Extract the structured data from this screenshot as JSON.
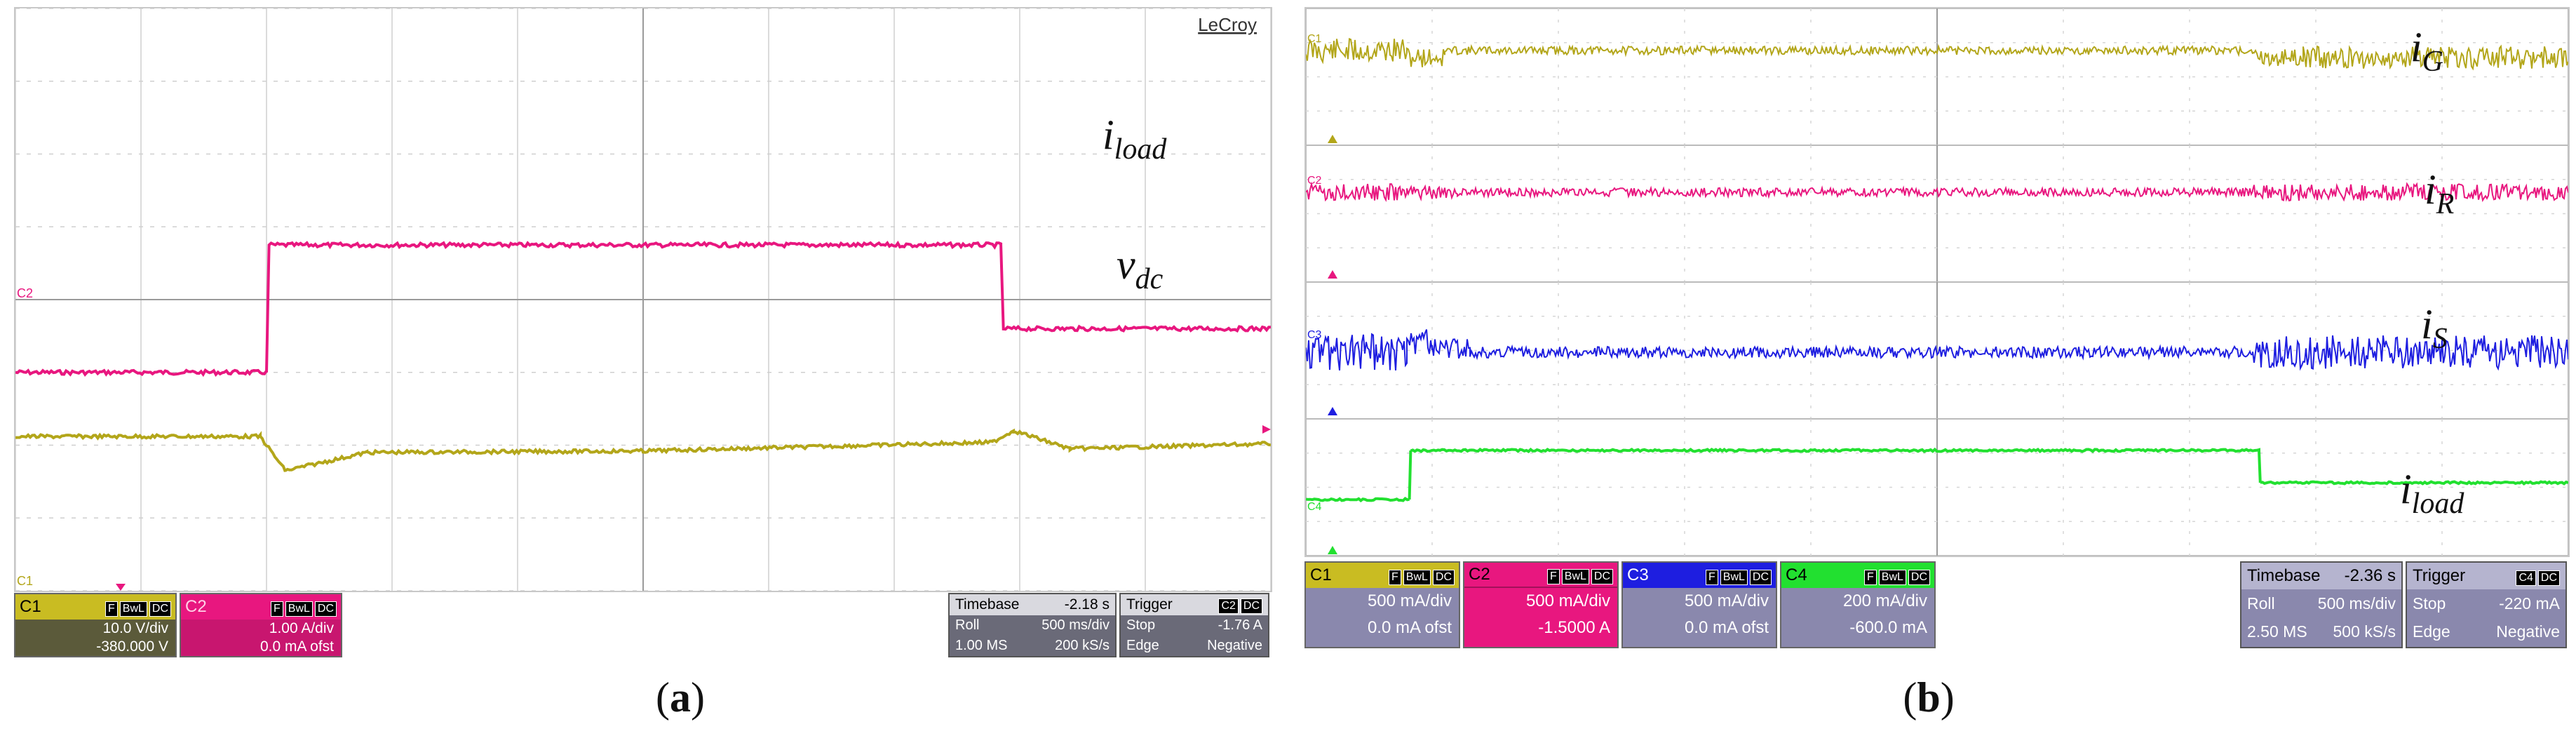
{
  "figure": {
    "panel_a": {
      "caption": "a",
      "logo": "LeCroy",
      "channel_markers": [
        "C2",
        "C1"
      ],
      "chart_data": {
        "type": "line",
        "xlabel": "",
        "ylabel": "",
        "time_unit": "s",
        "x_range_s": [
          -2.5,
          2.5
        ],
        "grid": true,
        "series": [
          {
            "name": "i_load",
            "label_main": "i",
            "label_sub": "load",
            "color": "#e8177f",
            "points_div": [
              [
                -5.0,
                3.0
              ],
              [
                -3.0,
                3.0
              ],
              [
                -2.98,
                4.75
              ],
              [
                2.85,
                4.75
              ],
              [
                2.87,
                3.6
              ],
              [
                5.0,
                3.6
              ]
            ]
          },
          {
            "name": "v_dc",
            "label_main": "v",
            "label_sub": "dc",
            "color": "#b3a61a",
            "points_div": [
              [
                -5.0,
                2.12
              ],
              [
                -3.05,
                2.12
              ],
              [
                -2.85,
                1.65
              ],
              [
                -2.2,
                1.9
              ],
              [
                0.0,
                1.92
              ],
              [
                2.78,
                2.04
              ],
              [
                2.95,
                2.2
              ],
              [
                3.4,
                1.95
              ],
              [
                5.0,
                2.02
              ]
            ]
          }
        ]
      },
      "channels": [
        {
          "id": "C1",
          "tags": [
            "F",
            "BwL",
            "DC"
          ],
          "scale": "10.0 V/div",
          "offset": "-380.000 V",
          "color": "#b3a61a"
        },
        {
          "id": "C2",
          "tags": [
            "F",
            "BwL",
            "DC"
          ],
          "scale": "1.00 A/div",
          "offset": "0.0 mA ofst",
          "color": "#e8177f"
        }
      ],
      "timebase": {
        "label": "Timebase",
        "value": "-2.18 s",
        "mode": "Roll",
        "rate": "500 ms/div",
        "samples": "1.00 MS",
        "sample_rate": "200 kS/s"
      },
      "trigger": {
        "label": "Trigger",
        "channel": "C2",
        "coupling": "DC",
        "mode": "Stop",
        "level": "-1.76 A",
        "type": "Edge",
        "slope": "Negative"
      }
    },
    "panel_b": {
      "caption": "b",
      "chart_data": {
        "type": "line",
        "xlabel": "",
        "ylabel": "",
        "time_unit": "s",
        "x_range_s": [
          -2.5,
          2.5
        ],
        "grid": true,
        "series": [
          {
            "name": "i_G",
            "label_main": "i",
            "label_sub": "G",
            "color": "#b3a61a",
            "channel": "C1"
          },
          {
            "name": "i_R",
            "label_main": "i",
            "label_sub": "R",
            "color": "#e8177f",
            "channel": "C2"
          },
          {
            "name": "i_S",
            "label_main": "i",
            "label_sub": "S",
            "color": "#1e1ee0",
            "channel": "C3"
          },
          {
            "name": "i_load",
            "label_main": "i",
            "label_sub": "load",
            "color": "#22e030",
            "channel": "C4"
          }
        ]
      },
      "channels": [
        {
          "id": "C1",
          "tags": [
            "F",
            "BwL",
            "DC"
          ],
          "scale": "500 mA/div",
          "offset": "0.0 mA ofst",
          "color": "#b3a61a"
        },
        {
          "id": "C2",
          "tags": [
            "F",
            "BwL",
            "DC"
          ],
          "scale": "500 mA/div",
          "offset": "-1.5000 A",
          "color": "#e8177f"
        },
        {
          "id": "C3",
          "tags": [
            "F",
            "BwL",
            "DC"
          ],
          "scale": "500 mA/div",
          "offset": "0.0 mA ofst",
          "color": "#1e1ee0"
        },
        {
          "id": "C4",
          "tags": [
            "F",
            "BwL",
            "DC"
          ],
          "scale": "200 mA/div",
          "offset": "-600.0 mA",
          "color": "#22e030"
        }
      ],
      "timebase": {
        "label": "Timebase",
        "value": "-2.36 s",
        "mode": "Roll",
        "rate": "500 ms/div",
        "samples": "2.50 MS",
        "sample_rate": "500 kS/s"
      },
      "trigger": {
        "label": "Trigger",
        "channel": "C4",
        "coupling": "DC",
        "mode": "Stop",
        "level": "-220 mA",
        "type": "Edge",
        "slope": "Negative"
      }
    }
  }
}
